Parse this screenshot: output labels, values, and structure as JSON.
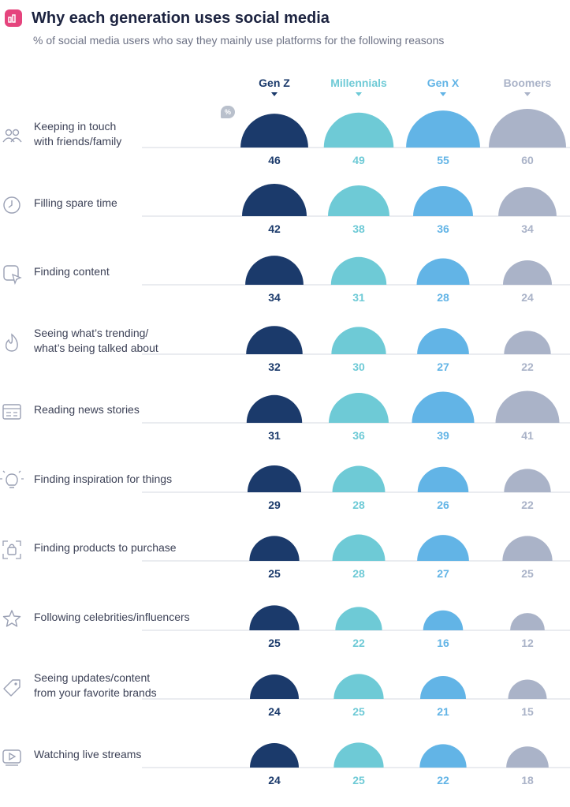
{
  "header": {
    "title": "Why each generation uses social media",
    "subtitle": "% of social media users who say they mainly use platforms for the following reasons",
    "badge_icon": "bar-chart-icon",
    "badge_color": "#e5447d",
    "unit_icon_label": "%"
  },
  "chart_data": {
    "type": "bar",
    "title": "Why each generation uses social media",
    "subtitle": "% of social media users who say they mainly use platforms for the following reasons",
    "categories": [
      "Keeping in touch with friends/family",
      "Filling spare time",
      "Finding content",
      "Seeing what's trending/ what's being talked about",
      "Reading news stories",
      "Finding inspiration for things",
      "Finding products to purchase",
      "Following celebrities/influencers",
      "Seeing updates/content from your favorite brands",
      "Watching live streams"
    ],
    "category_lines": [
      [
        "Keeping in touch",
        "with friends/family"
      ],
      [
        "Filling spare time"
      ],
      [
        "Finding content"
      ],
      [
        "Seeing what’s trending/",
        "what’s being talked about"
      ],
      [
        "Reading news stories"
      ],
      [
        "Finding inspiration for things"
      ],
      [
        "Finding products to purchase"
      ],
      [
        "Following celebrities/influencers"
      ],
      [
        "Seeing updates/content",
        "from your favorite brands"
      ],
      [
        "Watching live streams"
      ]
    ],
    "category_icons": [
      "people-icon",
      "clock-icon",
      "content-cursor-icon",
      "flame-icon",
      "news-icon",
      "lightbulb-icon",
      "shopping-bag-icon",
      "star-icon",
      "tag-icon",
      "video-play-icon"
    ],
    "series": [
      {
        "name": "Gen Z",
        "color": "#1b3a6b",
        "values": [
          46,
          42,
          34,
          32,
          31,
          29,
          25,
          25,
          24,
          24
        ]
      },
      {
        "name": "Millennials",
        "color": "#6ecad6",
        "values": [
          49,
          38,
          31,
          30,
          36,
          28,
          28,
          22,
          25,
          25
        ]
      },
      {
        "name": "Gen X",
        "color": "#62b4e6",
        "values": [
          55,
          36,
          28,
          27,
          39,
          26,
          27,
          16,
          21,
          22
        ]
      },
      {
        "name": "Boomers",
        "color": "#aab3c8",
        "values": [
          60,
          34,
          24,
          22,
          41,
          22,
          25,
          12,
          15,
          18
        ]
      }
    ],
    "ylim": [
      0,
      60
    ],
    "legend": "top"
  }
}
